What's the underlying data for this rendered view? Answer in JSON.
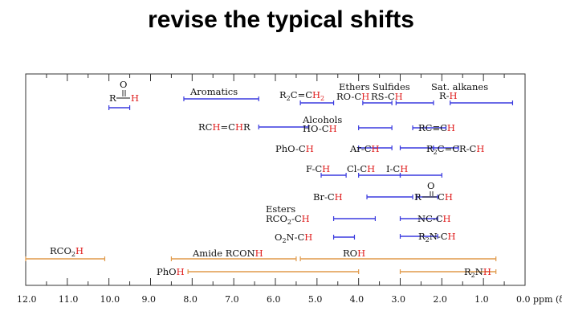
{
  "slide": {
    "title": "revise the typical shifts"
  },
  "chart_data": {
    "type": "diagram",
    "xlim": [
      12.0,
      0.0
    ],
    "x_tick_labels": [
      "12.0",
      "11.0",
      "10.0",
      "9.0",
      "8.0",
      "7.0",
      "6.0",
      "5.0",
      "4.0",
      "3.0",
      "2.0",
      "1.0",
      "0.0 ppm (δ)"
    ],
    "colors": {
      "range_1h": "#3a3adf",
      "range_exchangeable": "#e09a4a",
      "proton_highlight": "#e02020",
      "text": "#111111"
    },
    "ranges": [
      {
        "group": "R-CHO (aldehyde)",
        "from": 10.0,
        "to": 9.5,
        "kind": "1h"
      },
      {
        "group": "Aromatics",
        "from": 8.2,
        "to": 6.4,
        "kind": "1h"
      },
      {
        "group": "R2C=CH2",
        "from": 5.4,
        "to": 4.6,
        "kind": "1h"
      },
      {
        "group": "Ethers RO-CH",
        "from": 3.9,
        "to": 3.2,
        "kind": "1h"
      },
      {
        "group": "Sulfides RS-CH",
        "from": 3.1,
        "to": 2.2,
        "kind": "1h"
      },
      {
        "group": "Sat. alkanes R-H",
        "from": 1.8,
        "to": 0.3,
        "kind": "1h"
      },
      {
        "group": "RCH=CHR",
        "from": 6.4,
        "to": 5.2,
        "kind": "1h"
      },
      {
        "group": "Alcohols HO-CH",
        "from": 4.0,
        "to": 3.2,
        "kind": "1h"
      },
      {
        "group": "RC≡CH",
        "from": 2.7,
        "to": 1.9,
        "kind": "1h"
      },
      {
        "group": "PhO-CH",
        "from": 4.0,
        "to": 3.2,
        "kind": "1h"
      },
      {
        "group": "Ar-CH",
        "from": 3.0,
        "to": 2.2,
        "kind": "1h"
      },
      {
        "group": "R2C=CR-CH",
        "from": 2.2,
        "to": 1.6,
        "kind": "1h"
      },
      {
        "group": "F-CH",
        "from": 4.9,
        "to": 4.3,
        "kind": "1h"
      },
      {
        "group": "Cl-CH",
        "from": 4.0,
        "to": 3.0,
        "kind": "1h"
      },
      {
        "group": "I-CH",
        "from": 3.0,
        "to": 2.0,
        "kind": "1h"
      },
      {
        "group": "Br-CH",
        "from": 3.8,
        "to": 2.7,
        "kind": "1h"
      },
      {
        "group": "R-CO-CH",
        "from": 2.6,
        "to": 2.1,
        "kind": "1h"
      },
      {
        "group": "Esters RCO2-CH",
        "from": 4.6,
        "to": 3.6,
        "kind": "1h"
      },
      {
        "group": "NC-CH",
        "from": 3.0,
        "to": 2.1,
        "kind": "1h"
      },
      {
        "group": "O2N-CH",
        "from": 4.6,
        "to": 4.1,
        "kind": "1h"
      },
      {
        "group": "R2N-CH",
        "from": 3.0,
        "to": 2.1,
        "kind": "1h"
      },
      {
        "group": "RCO2H",
        "from": 12.0,
        "to": 10.1,
        "kind": "exchangeable"
      },
      {
        "group": "Amide RCONH",
        "from": 8.5,
        "to": 5.5,
        "kind": "exchangeable"
      },
      {
        "group": "ROH",
        "from": 5.4,
        "to": 0.7,
        "kind": "exchangeable"
      },
      {
        "group": "PhOH",
        "from": 8.1,
        "to": 4.0,
        "kind": "exchangeable"
      },
      {
        "group": "R2NH",
        "from": 3.0,
        "to": 0.7,
        "kind": "exchangeable"
      }
    ]
  }
}
